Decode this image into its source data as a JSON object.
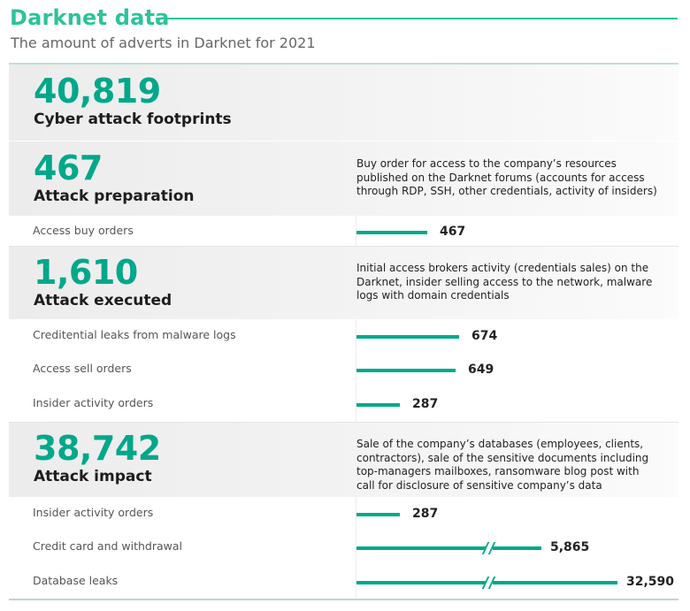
{
  "chart_data": {
    "type": "bar",
    "title": "Darknet data",
    "subtitle": "The amount of adverts in Darknet for 2021",
    "bar_color": "#00a88a",
    "accent_color": "#2cc39b",
    "sections": [
      {
        "value": "40,819",
        "title": "Cyber attack footprints",
        "description": ""
      },
      {
        "value": "467",
        "title": "Attack preparation",
        "description": "Buy order for access to the company’s   resources published on the Darknet forums (accounts for access through RDP, SSH, other credentials, activity of insiders)"
      },
      {
        "value": "1,610",
        "title": "Attack executed",
        "description": "Initial access brokers activity (credentials sales) on the Darknet, insider selling access to the network, malware logs with domain credentials"
      },
      {
        "value": "38,742",
        "title": "Attack impact",
        "description": "Sale of the company’s databases (employees, clients, contractors), sale of the sensitive documents including top-managers mailboxes, ransomware blog post with call for disclosure of sensitive company’s data"
      }
    ],
    "rows": [
      {
        "section": 1,
        "label": "Access buy orders",
        "value": 467,
        "value_label": "467",
        "axis_break": false
      },
      {
        "section": 2,
        "label": "Creditential leaks from malware logs",
        "value": 674,
        "value_label": "674",
        "axis_break": false
      },
      {
        "section": 2,
        "label": "Access sell orders",
        "value": 649,
        "value_label": "649",
        "axis_break": false
      },
      {
        "section": 2,
        "label": "Insider activity orders",
        "value": 287,
        "value_label": "287",
        "axis_break": false
      },
      {
        "section": 3,
        "label": "Insider activity orders",
        "value": 287,
        "value_label": "287",
        "axis_break": false
      },
      {
        "section": 3,
        "label": "Credit card and withdrawal",
        "value": 5865,
        "value_label": "5,865",
        "axis_break": true
      },
      {
        "section": 3,
        "label": "Database leaks",
        "value": 32590,
        "value_label": "32,590",
        "axis_break": true
      }
    ]
  }
}
